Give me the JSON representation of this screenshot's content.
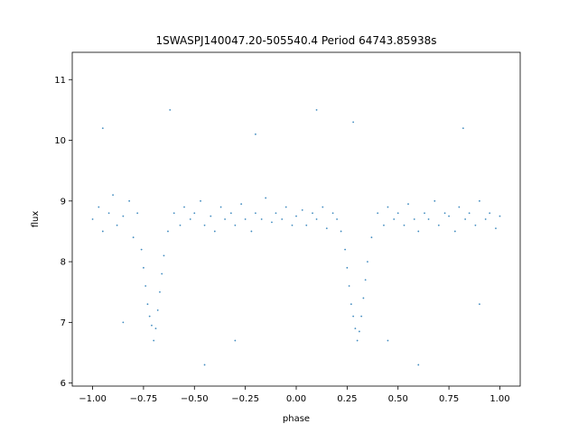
{
  "chart_data": {
    "type": "scatter",
    "title": "1SWASPJ140047.20-505540.4 Period 64743.85938s",
    "xlabel": "phase",
    "ylabel": "flux",
    "xlim": [
      -1.1,
      1.1
    ],
    "ylim": [
      5.95,
      11.45
    ],
    "x_ticks": [
      -1.0,
      -0.75,
      -0.5,
      -0.25,
      0.0,
      0.25,
      0.5,
      0.75,
      1.0
    ],
    "x_tick_labels": [
      "−1.00",
      "−0.75",
      "−0.50",
      "−0.25",
      "0.00",
      "0.25",
      "0.50",
      "0.75",
      "1.00"
    ],
    "y_ticks": [
      6,
      7,
      8,
      9,
      10,
      11
    ],
    "y_tick_labels": [
      "6",
      "7",
      "8",
      "9",
      "10",
      "11"
    ],
    "grid": false,
    "legend": "none",
    "marker_color": "#1f77b4",
    "series": [
      {
        "points": [
          [
            -1.0,
            8.7
          ],
          [
            -0.97,
            8.9
          ],
          [
            -0.95,
            8.5
          ],
          [
            -0.92,
            8.8
          ],
          [
            -0.9,
            9.1
          ],
          [
            -0.88,
            8.6
          ],
          [
            -0.85,
            8.75
          ],
          [
            -0.82,
            9.0
          ],
          [
            -0.8,
            8.4
          ],
          [
            -0.78,
            8.8
          ],
          [
            -0.76,
            8.2
          ],
          [
            -0.75,
            7.9
          ],
          [
            -0.74,
            7.6
          ],
          [
            -0.73,
            7.3
          ],
          [
            -0.72,
            7.1
          ],
          [
            -0.71,
            6.95
          ],
          [
            -0.7,
            6.7
          ],
          [
            -0.69,
            6.9
          ],
          [
            -0.68,
            7.2
          ],
          [
            -0.67,
            7.5
          ],
          [
            -0.66,
            7.8
          ],
          [
            -0.65,
            8.1
          ],
          [
            -0.63,
            8.5
          ],
          [
            -0.6,
            8.8
          ],
          [
            -0.57,
            8.6
          ],
          [
            -0.55,
            8.9
          ],
          [
            -0.52,
            8.7
          ],
          [
            -0.5,
            8.8
          ],
          [
            -0.47,
            9.0
          ],
          [
            -0.45,
            8.6
          ],
          [
            -0.42,
            8.75
          ],
          [
            -0.4,
            8.5
          ],
          [
            -0.37,
            8.9
          ],
          [
            -0.35,
            8.7
          ],
          [
            -0.32,
            8.8
          ],
          [
            -0.3,
            8.6
          ],
          [
            -0.27,
            8.95
          ],
          [
            -0.25,
            8.7
          ],
          [
            -0.22,
            8.5
          ],
          [
            -0.2,
            8.8
          ],
          [
            -0.17,
            8.7
          ],
          [
            -0.15,
            9.05
          ],
          [
            -0.12,
            8.65
          ],
          [
            -0.1,
            8.8
          ],
          [
            -0.07,
            8.7
          ],
          [
            -0.05,
            8.9
          ],
          [
            -0.02,
            8.6
          ],
          [
            0.0,
            8.75
          ],
          [
            0.03,
            8.85
          ],
          [
            0.05,
            8.6
          ],
          [
            0.08,
            8.8
          ],
          [
            0.1,
            8.7
          ],
          [
            0.13,
            8.9
          ],
          [
            0.15,
            8.55
          ],
          [
            0.18,
            8.8
          ],
          [
            0.2,
            8.7
          ],
          [
            0.22,
            8.5
          ],
          [
            0.24,
            8.2
          ],
          [
            0.25,
            7.9
          ],
          [
            0.26,
            7.6
          ],
          [
            0.27,
            7.3
          ],
          [
            0.28,
            7.1
          ],
          [
            0.29,
            6.9
          ],
          [
            0.3,
            6.7
          ],
          [
            0.31,
            6.85
          ],
          [
            0.32,
            7.1
          ],
          [
            0.33,
            7.4
          ],
          [
            0.34,
            7.7
          ],
          [
            0.35,
            8.0
          ],
          [
            0.37,
            8.4
          ],
          [
            0.4,
            8.8
          ],
          [
            0.43,
            8.6
          ],
          [
            0.45,
            8.9
          ],
          [
            0.48,
            8.7
          ],
          [
            0.5,
            8.8
          ],
          [
            0.53,
            8.6
          ],
          [
            0.55,
            8.95
          ],
          [
            0.58,
            8.7
          ],
          [
            0.6,
            8.5
          ],
          [
            0.63,
            8.8
          ],
          [
            0.65,
            8.7
          ],
          [
            0.68,
            9.0
          ],
          [
            0.7,
            8.6
          ],
          [
            0.73,
            8.8
          ],
          [
            0.75,
            8.75
          ],
          [
            0.78,
            8.5
          ],
          [
            0.8,
            8.9
          ],
          [
            0.83,
            8.7
          ],
          [
            0.85,
            8.8
          ],
          [
            0.88,
            8.6
          ],
          [
            0.9,
            9.0
          ],
          [
            0.93,
            8.7
          ],
          [
            0.95,
            8.8
          ],
          [
            0.98,
            8.55
          ],
          [
            1.0,
            8.75
          ],
          [
            -0.62,
            10.5
          ],
          [
            0.28,
            10.3
          ],
          [
            -0.2,
            10.1
          ],
          [
            0.82,
            10.2
          ],
          [
            -0.45,
            6.3
          ],
          [
            0.6,
            6.3
          ],
          [
            -0.85,
            7.0
          ],
          [
            0.9,
            7.3
          ],
          [
            -0.3,
            6.7
          ],
          [
            0.1,
            10.5
          ],
          [
            -0.95,
            10.2
          ],
          [
            0.45,
            6.7
          ]
        ]
      }
    ]
  }
}
